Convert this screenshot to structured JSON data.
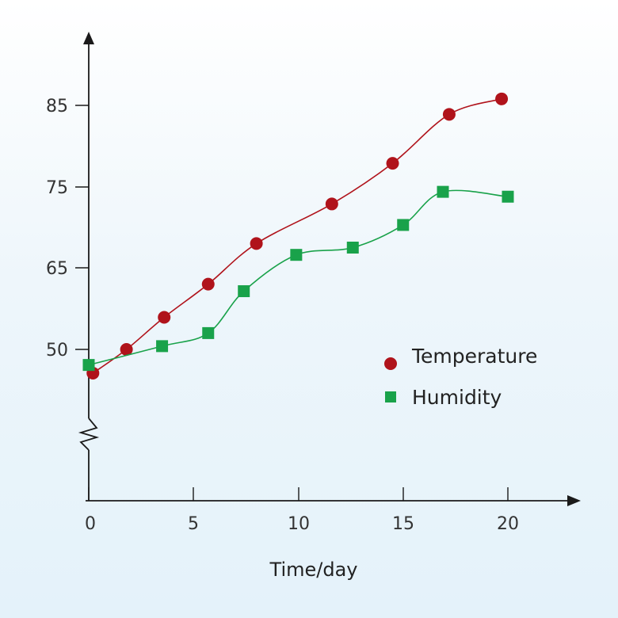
{
  "chart_data": {
    "type": "line",
    "xlabel": "Time/day",
    "ylabel": "",
    "x_ticks": [
      "0",
      "5",
      "10",
      "15",
      "20"
    ],
    "y_ticks": [
      "50",
      "65",
      "75",
      "85"
    ],
    "y_axis_break": true,
    "legend_position": "right-middle",
    "series": [
      {
        "name": "Temperature",
        "marker": "circle",
        "color": "#b0131b",
        "x": [
          0.2,
          1.8,
          3.6,
          5.7,
          8.0,
          11.6,
          14.5,
          17.2,
          19.7
        ],
        "y": [
          47.1,
          50.0,
          55.9,
          62.0,
          68.0,
          72.9,
          77.9,
          83.9,
          85.8
        ]
      },
      {
        "name": "Humidity",
        "marker": "square",
        "color": "#19a24a",
        "x": [
          0.0,
          3.5,
          5.7,
          7.4,
          9.9,
          12.6,
          15.0,
          16.9,
          20.0
        ],
        "y": [
          48.1,
          50.6,
          53.0,
          60.7,
          66.6,
          67.5,
          70.3,
          74.4,
          73.8
        ]
      }
    ]
  }
}
